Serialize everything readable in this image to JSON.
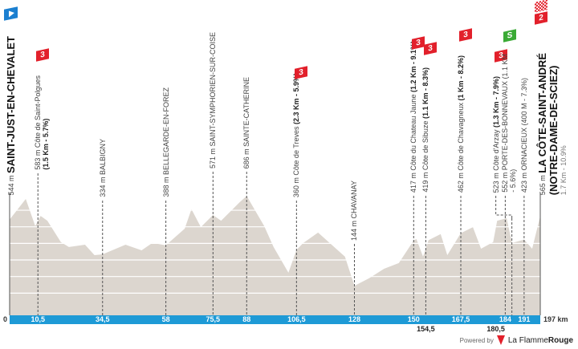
{
  "chart_data": {
    "type": "area",
    "xlabel_unit": "km",
    "x_range": [
      0,
      197
    ],
    "y_range_m": [
      0,
      700
    ],
    "grid": true,
    "grid_step_m": 100,
    "fill_color": "#dcd6cf",
    "bar_color": "#1e9ad6",
    "profile": {
      "km": [
        0,
        6,
        9.5,
        11.5,
        14,
        19,
        22,
        28,
        31.5,
        34.5,
        43,
        49,
        53,
        58,
        65,
        67.5,
        71,
        75.5,
        78.5,
        85.5,
        88,
        94.5,
        98,
        103.5,
        106.5,
        109,
        114.5,
        120.5,
        124.5,
        128,
        133.5,
        139,
        144.5,
        150,
        151,
        153.5,
        155.5,
        160,
        162.5,
        167.5,
        172,
        175,
        179.5,
        181,
        184.5,
        186.5,
        191,
        194,
        197
      ],
      "elevation_m": [
        544,
        668,
        505,
        566,
        537,
        408,
        378,
        392,
        329,
        334,
        392,
        358,
        403,
        388,
        489,
        606,
        498,
        571,
        537,
        650,
        686,
        505,
        378,
        223,
        360,
        402,
        465,
        378,
        320,
        144,
        190,
        247,
        281,
        417,
        426,
        320,
        419,
        456,
        329,
        462,
        498,
        368,
        408,
        537,
        552,
        402,
        423,
        368,
        565
      ]
    },
    "km_ticks": [
      "10,5",
      "34,5",
      "58",
      "75,5",
      "88",
      "106,5",
      "128",
      "150",
      "167,5",
      "184",
      "191"
    ],
    "km_ticks_values": [
      10.5,
      34.5,
      58,
      75.5,
      88,
      106.5,
      128,
      150,
      167.5,
      184,
      191
    ],
    "km_ticks_below": [
      "154,5",
      "180,5"
    ],
    "km_ticks_below_values": [
      154.5,
      180.5
    ],
    "zero_label": "0",
    "end_label": "197 km"
  },
  "points": [
    {
      "km": 0,
      "alt": "544 m",
      "name": "SAINT-JUST-EN-CHEVALET",
      "style": "big",
      "badge": "start"
    },
    {
      "km": 10.5,
      "alt": "583 m",
      "name": "Côte de Saint-Polgues",
      "detail": "(1.5 Km - 5.7%)",
      "badge": "3"
    },
    {
      "km": 34.5,
      "alt": "334 m",
      "name": "BALBIGNY"
    },
    {
      "km": 58,
      "alt": "388 m",
      "name": "BELLEGARDE-EN-FOREZ"
    },
    {
      "km": 75.5,
      "alt": "571 m",
      "name": "SAINT-SYMPHORIEN-SUR-COISE"
    },
    {
      "km": 88,
      "alt": "686 m",
      "name": "SAINTE-CATHERINE"
    },
    {
      "km": 106.5,
      "alt": "360 m",
      "name": "Côte de Treves",
      "detail_inline": "(2.3 Km - 5.9%)",
      "badge": "3"
    },
    {
      "km": 128,
      "alt": "144 m",
      "name": "CHAVANAY"
    },
    {
      "km": 150,
      "alt": "417 m",
      "name": "Côte du Chateau Jaune",
      "detail_inline": "(1.2 Km - 9.1%)",
      "badge": "3"
    },
    {
      "km": 154.5,
      "alt": "419 m",
      "name": "Côte de Sibuze",
      "detail_inline": "(1.1 Km - 8.3%)",
      "badge": "3"
    },
    {
      "km": 167.5,
      "alt": "462 m",
      "name": "Côte de Chavagneux",
      "detail_inline": "(1 Km - 8.2%)",
      "badge": "3"
    },
    {
      "km": 180.5,
      "alt": "523 m",
      "name": "Côte d'Arzay",
      "detail_inline": "(1.3 Km - 7.9%)",
      "badge": "3"
    },
    {
      "km": 184,
      "alt": "552 m",
      "name": "PORTE-DES-BONNEVAUX (1.1 KM",
      "detail_plain": "- 5.6%)",
      "badge": "S"
    },
    {
      "km": 191,
      "alt": "423 m",
      "name": "ORNACIEUX (400 M - 7.3%)"
    },
    {
      "km": 197,
      "alt": "565 m",
      "name": "LA CÔTE-SAINT-ANDRÉ",
      "name2": "(NOTRE-DAME-DE-SCIEZ)",
      "sub": "1.7 Km - 10.9%",
      "style": "big",
      "badge": "2"
    }
  ],
  "footer": {
    "powered_by": "Powered by",
    "brand_a": "La Flamme",
    "brand_b": "Rouge"
  }
}
